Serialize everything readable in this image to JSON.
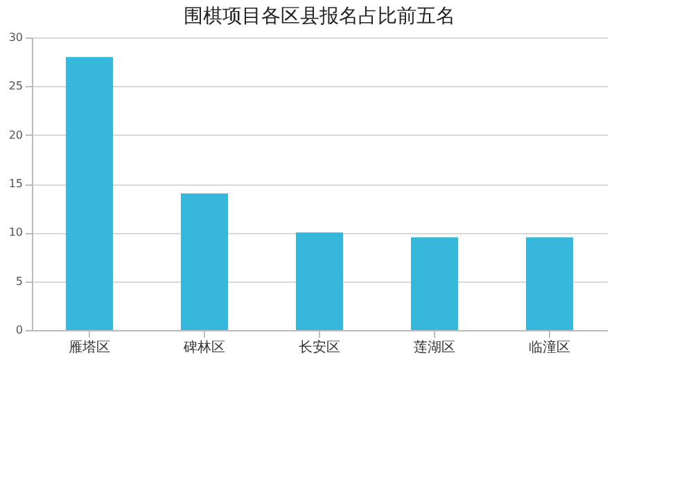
{
  "chart_data": {
    "type": "bar",
    "title": "围棋项目各区县报名占比前五名",
    "categories": [
      "雁塔区",
      "碑林区",
      "长安区",
      "莲湖区",
      "临潼区"
    ],
    "values": [
      28,
      14,
      10,
      9.5,
      9.5
    ],
    "color": "#35b8dc",
    "ylim": [
      0,
      30
    ],
    "yticks": [
      0,
      5,
      10,
      15,
      20,
      25,
      30
    ],
    "grid": "y"
  }
}
